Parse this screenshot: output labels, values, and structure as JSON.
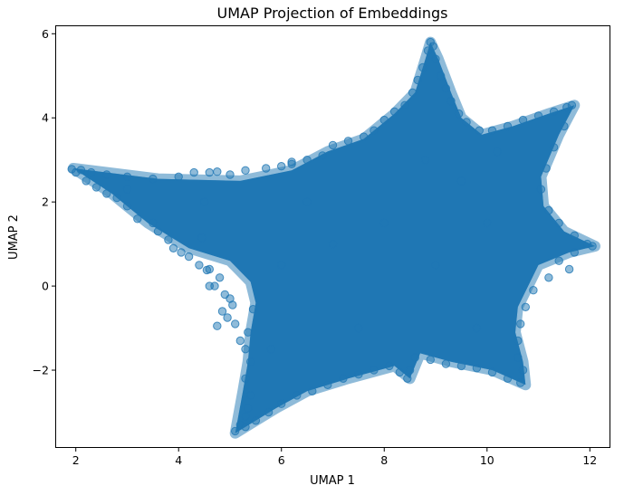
{
  "chart_data": {
    "type": "scatter",
    "title": "UMAP Projection of Embeddings",
    "xlabel": "UMAP 1",
    "ylabel": "UMAP 2",
    "xlim": [
      1.6,
      12.4
    ],
    "ylim": [
      -3.85,
      6.2
    ],
    "grid": false,
    "legend": "none",
    "x_ticks": [
      2,
      4,
      6,
      8,
      10,
      12
    ],
    "y_ticks": [
      -2,
      0,
      2,
      4,
      6
    ],
    "x_tick_labels": [
      "2",
      "4",
      "6",
      "8",
      "10",
      "12"
    ],
    "y_tick_labels": [
      "−2",
      "0",
      "2",
      "4",
      "6"
    ],
    "point_color": "#1f77b4",
    "point_alpha": 0.5,
    "region_outline": [
      [
        1.95,
        2.8
      ],
      [
        3.6,
        2.55
      ],
      [
        5.2,
        2.5
      ],
      [
        6.2,
        2.75
      ],
      [
        6.9,
        3.2
      ],
      [
        7.6,
        3.5
      ],
      [
        8.2,
        4.1
      ],
      [
        8.6,
        4.6
      ],
      [
        8.8,
        5.4
      ],
      [
        8.9,
        5.8
      ],
      [
        9.05,
        5.4
      ],
      [
        9.3,
        4.6
      ],
      [
        9.5,
        4.0
      ],
      [
        9.9,
        3.6
      ],
      [
        10.5,
        3.8
      ],
      [
        11.2,
        4.1
      ],
      [
        11.7,
        4.3
      ],
      [
        11.4,
        3.6
      ],
      [
        11.05,
        2.6
      ],
      [
        11.1,
        1.9
      ],
      [
        11.5,
        1.3
      ],
      [
        12.1,
        0.95
      ],
      [
        11.6,
        0.8
      ],
      [
        11.0,
        0.5
      ],
      [
        10.6,
        -0.5
      ],
      [
        10.55,
        -1.1
      ],
      [
        10.7,
        -1.8
      ],
      [
        10.75,
        -2.35
      ],
      [
        10.1,
        -2.0
      ],
      [
        9.3,
        -1.8
      ],
      [
        8.7,
        -1.6
      ],
      [
        8.5,
        -2.2
      ],
      [
        8.2,
        -1.9
      ],
      [
        7.3,
        -2.2
      ],
      [
        6.5,
        -2.5
      ],
      [
        5.9,
        -2.9
      ],
      [
        5.5,
        -3.2
      ],
      [
        5.1,
        -3.5
      ],
      [
        5.25,
        -2.5
      ],
      [
        5.35,
        -1.8
      ],
      [
        5.4,
        -1.1
      ],
      [
        5.5,
        -0.4
      ],
      [
        5.4,
        0.1
      ],
      [
        5.0,
        0.6
      ],
      [
        4.2,
        0.9
      ],
      [
        3.4,
        1.5
      ],
      [
        2.7,
        2.2
      ]
    ],
    "scattered_points": [
      [
        5.1,
        -3.45
      ],
      [
        5.2,
        -3.3
      ],
      [
        5.3,
        -3.1
      ],
      [
        5.35,
        -2.9
      ],
      [
        5.4,
        -2.6
      ],
      [
        5.3,
        -2.2
      ],
      [
        5.4,
        -1.8
      ],
      [
        5.3,
        -1.5
      ],
      [
        5.2,
        -1.3
      ],
      [
        5.35,
        -1.1
      ],
      [
        5.1,
        -0.9
      ],
      [
        4.85,
        -0.6
      ],
      [
        4.95,
        -0.75
      ],
      [
        5.0,
        -0.3
      ],
      [
        4.9,
        -0.2
      ],
      [
        4.7,
        0.0
      ],
      [
        4.6,
        0.0
      ],
      [
        4.8,
        0.2
      ],
      [
        4.6,
        0.4
      ],
      [
        4.4,
        0.5
      ],
      [
        4.2,
        0.7
      ],
      [
        4.05,
        0.8
      ],
      [
        3.8,
        1.1
      ],
      [
        3.6,
        1.3
      ],
      [
        3.5,
        1.5
      ],
      [
        3.2,
        1.6
      ],
      [
        3.0,
        1.9
      ],
      [
        2.8,
        2.1
      ],
      [
        2.6,
        2.2
      ],
      [
        2.4,
        2.35
      ],
      [
        2.2,
        2.5
      ],
      [
        2.0,
        2.7
      ],
      [
        1.92,
        2.78
      ],
      [
        2.1,
        2.76
      ],
      [
        2.3,
        2.7
      ],
      [
        2.6,
        2.65
      ],
      [
        3.0,
        2.6
      ],
      [
        3.5,
        2.55
      ],
      [
        4.0,
        2.6
      ],
      [
        4.3,
        2.7
      ],
      [
        4.6,
        2.7
      ],
      [
        5.0,
        2.65
      ],
      [
        5.3,
        2.75
      ],
      [
        5.7,
        2.8
      ],
      [
        6.0,
        2.85
      ],
      [
        6.2,
        2.95
      ],
      [
        6.5,
        3.0
      ],
      [
        6.8,
        3.1
      ],
      [
        7.0,
        3.35
      ],
      [
        7.3,
        3.45
      ],
      [
        7.6,
        3.55
      ],
      [
        7.8,
        3.7
      ],
      [
        8.0,
        3.95
      ],
      [
        8.2,
        4.15
      ],
      [
        8.4,
        4.3
      ],
      [
        8.55,
        4.6
      ],
      [
        8.65,
        4.9
      ],
      [
        8.75,
        5.2
      ],
      [
        8.85,
        5.6
      ],
      [
        8.9,
        5.8
      ],
      [
        8.95,
        5.7
      ],
      [
        9.0,
        5.4
      ],
      [
        9.1,
        5.0
      ],
      [
        9.2,
        4.7
      ],
      [
        9.3,
        4.4
      ],
      [
        9.45,
        4.1
      ],
      [
        9.6,
        3.9
      ],
      [
        9.85,
        3.7
      ],
      [
        10.1,
        3.7
      ],
      [
        10.4,
        3.8
      ],
      [
        10.7,
        3.95
      ],
      [
        11.0,
        4.05
      ],
      [
        11.3,
        4.15
      ],
      [
        11.55,
        4.25
      ],
      [
        11.65,
        4.3
      ],
      [
        11.5,
        3.8
      ],
      [
        11.3,
        3.3
      ],
      [
        11.15,
        2.8
      ],
      [
        11.05,
        2.3
      ],
      [
        11.2,
        1.8
      ],
      [
        11.4,
        1.5
      ],
      [
        11.7,
        1.2
      ],
      [
        11.95,
        1.0
      ],
      [
        12.05,
        0.95
      ],
      [
        11.7,
        0.8
      ],
      [
        11.4,
        0.6
      ],
      [
        11.6,
        0.4
      ],
      [
        11.2,
        0.2
      ],
      [
        10.9,
        -0.1
      ],
      [
        10.75,
        -0.5
      ],
      [
        10.65,
        -0.9
      ],
      [
        10.6,
        -1.3
      ],
      [
        10.6,
        -1.7
      ],
      [
        10.7,
        -2.0
      ],
      [
        10.65,
        -2.3
      ],
      [
        10.4,
        -2.2
      ],
      [
        10.1,
        -2.05
      ],
      [
        9.8,
        -1.95
      ],
      [
        9.5,
        -1.9
      ],
      [
        9.2,
        -1.85
      ],
      [
        8.9,
        -1.75
      ],
      [
        8.6,
        -1.7
      ],
      [
        8.5,
        -2.0
      ],
      [
        8.45,
        -2.2
      ],
      [
        8.3,
        -2.05
      ],
      [
        8.1,
        -1.9
      ],
      [
        7.8,
        -2.0
      ],
      [
        7.5,
        -2.1
      ],
      [
        7.2,
        -2.2
      ],
      [
        6.9,
        -2.35
      ],
      [
        6.6,
        -2.5
      ],
      [
        6.3,
        -2.6
      ],
      [
        6.0,
        -2.8
      ],
      [
        5.75,
        -3.0
      ],
      [
        5.5,
        -3.2
      ],
      [
        5.3,
        -3.35
      ],
      [
        6.0,
        0.5
      ],
      [
        7.0,
        1.0
      ],
      [
        8.0,
        1.5
      ],
      [
        9.0,
        0.5
      ],
      [
        10.0,
        1.5
      ],
      [
        7.5,
        -1.0
      ],
      [
        9.5,
        2.5
      ],
      [
        6.5,
        2.0
      ],
      [
        4.5,
        2.0
      ],
      [
        3.0,
        2.3
      ],
      [
        8.8,
        3.0
      ],
      [
        10.2,
        3.2
      ],
      [
        5.8,
        -1.5
      ],
      [
        9.8,
        -1.0
      ],
      [
        6.2,
        2.9
      ],
      [
        4.75,
        2.72
      ],
      [
        4.45,
        1.15
      ],
      [
        3.9,
        0.9
      ],
      [
        4.55,
        0.38
      ],
      [
        5.45,
        -0.55
      ],
      [
        5.05,
        -0.45
      ],
      [
        4.75,
        -0.95
      ]
    ]
  }
}
